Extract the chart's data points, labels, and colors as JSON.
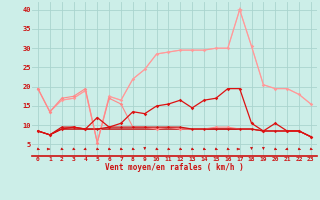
{
  "x": [
    0,
    1,
    2,
    3,
    4,
    5,
    6,
    7,
    8,
    9,
    10,
    11,
    12,
    13,
    14,
    15,
    16,
    17,
    18,
    19,
    20,
    21,
    22,
    23
  ],
  "bg_color": "#cceee8",
  "grid_color": "#aad4ce",
  "xlabel": "Vent moyen/en rafales ( km/h )",
  "ylim": [
    2,
    42
  ],
  "xlim": [
    -0.5,
    23.5
  ],
  "yticks": [
    5,
    10,
    15,
    20,
    25,
    30,
    35,
    40
  ],
  "line_rafales_light": {
    "y": [
      19.5,
      13.5,
      16.5,
      17.0,
      19.0,
      5.5,
      17.5,
      16.5,
      22.0,
      24.5,
      28.5,
      29.0,
      29.5,
      29.5,
      29.5,
      30.0,
      30.0,
      40.0,
      30.5,
      20.5,
      19.5,
      19.5,
      18.0,
      15.5
    ],
    "color": "#ffaaaa",
    "lw": 0.8,
    "alpha": 1.0,
    "star_at": 17
  },
  "line_rafales_med": {
    "y": [
      19.5,
      13.5,
      16.5,
      17.0,
      19.0,
      5.5,
      17.5,
      16.5,
      22.0,
      24.5,
      28.5,
      29.0,
      29.5,
      29.5,
      29.5,
      30.0,
      30.0,
      40.0,
      30.5,
      20.5,
      19.5,
      19.5,
      18.0,
      15.5
    ],
    "color": "#ff9999",
    "lw": 0.8,
    "marker": "D",
    "ms": 1.8,
    "alpha": 1.0,
    "star_at": 17
  },
  "line_pink_flat": {
    "y": [
      19.5,
      13.5,
      17.0,
      17.5,
      19.5,
      5.5,
      17.0,
      15.5,
      9.5,
      9.5,
      9.0,
      9.5,
      9.0,
      9.0,
      9.0,
      9.5,
      9.5,
      9.0,
      9.0,
      8.5,
      8.5,
      8.5,
      8.5,
      7.0
    ],
    "color": "#ff8888",
    "lw": 0.8,
    "marker": "D",
    "ms": 1.8,
    "alpha": 1.0
  },
  "line_red_flat": {
    "y": [
      8.5,
      7.5,
      9.5,
      9.5,
      9.0,
      9.0,
      9.5,
      9.5,
      9.5,
      9.5,
      9.5,
      9.5,
      9.5,
      9.0,
      9.0,
      9.0,
      9.0,
      9.0,
      9.0,
      8.5,
      8.5,
      8.5,
      8.5,
      7.0
    ],
    "color": "#cc1111",
    "lw": 0.9,
    "marker": "D",
    "ms": 1.5,
    "alpha": 1.0
  },
  "line_red_rise": {
    "y": [
      8.5,
      7.5,
      9.0,
      9.5,
      9.0,
      12.0,
      9.5,
      10.5,
      13.5,
      13.0,
      15.0,
      15.5,
      16.5,
      14.5,
      16.5,
      17.0,
      19.5,
      19.5,
      10.5,
      8.5,
      10.5,
      8.5,
      8.5,
      7.0
    ],
    "color": "#dd1111",
    "lw": 0.9,
    "marker": "D",
    "ms": 1.8,
    "alpha": 1.0
  },
  "line_red_extra1": {
    "y": [
      8.5,
      7.5,
      9.0,
      9.0,
      9.0,
      9.0,
      9.0,
      9.0,
      9.0,
      9.0,
      9.0,
      9.0,
      9.0,
      9.0,
      9.0,
      9.0,
      9.0,
      9.0,
      9.0,
      8.5,
      8.5,
      8.5,
      8.5,
      7.0
    ],
    "color": "#cc1111",
    "lw": 0.7,
    "alpha": 1.0
  },
  "line_red_extra2": {
    "y": [
      8.5,
      7.5,
      9.0,
      9.0,
      9.0,
      9.0,
      9.0,
      9.0,
      9.0,
      9.0,
      9.0,
      9.0,
      9.0,
      9.0,
      9.0,
      9.0,
      9.0,
      9.0,
      9.0,
      8.5,
      8.5,
      8.5,
      8.5,
      7.0
    ],
    "color": "#bb0000",
    "lw": 0.6,
    "alpha": 1.0
  },
  "arrows_angles": [
    45,
    90,
    45,
    45,
    315,
    45,
    45,
    45,
    45,
    0,
    45,
    45,
    45,
    45,
    45,
    45,
    45,
    90,
    0,
    0,
    45,
    315,
    45,
    45
  ]
}
